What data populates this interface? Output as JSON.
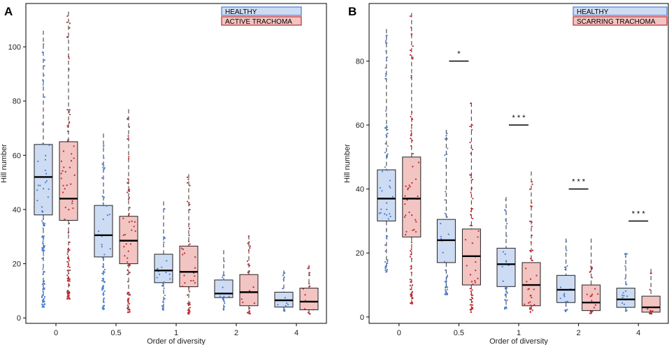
{
  "chart_data": [
    {
      "type": "box",
      "panel_label": "A",
      "xlabel": "Order of diversity",
      "ylabel": "Hill number",
      "categories": [
        "0",
        "0.5",
        "1",
        "2",
        "4"
      ],
      "yticks": [
        "0",
        "20",
        "40",
        "60",
        "80",
        "100"
      ],
      "ylim": [
        -2,
        116
      ],
      "legend": {
        "position": "top-right",
        "entries": [
          "HEALTHY",
          "ACTIVE TRACHOMA"
        ]
      },
      "colors": {
        "healthy": "#4a7fd4",
        "disease": "#c0282e",
        "healthy_fill": "#cddcf3",
        "disease_fill": "#f2c4c2"
      },
      "significance": [
        "",
        "",
        "",
        "",
        ""
      ],
      "series": [
        {
          "name": "HEALTHY",
          "boxes": [
            {
              "min": 4,
              "q1": 38,
              "median": 52,
              "q3": 64,
              "max": 106
            },
            {
              "min": 3,
              "q1": 22.5,
              "median": 30.5,
              "q3": 41.5,
              "max": 68
            },
            {
              "min": 3,
              "q1": 13,
              "median": 17.5,
              "q3": 23.5,
              "max": 43
            },
            {
              "min": 3,
              "q1": 7.5,
              "median": 9,
              "q3": 14,
              "max": 25
            },
            {
              "min": 2.5,
              "q1": 4,
              "median": 6.5,
              "q3": 9.5,
              "max": 17.5
            }
          ]
        },
        {
          "name": "ACTIVE TRACHOMA",
          "boxes": [
            {
              "min": 7,
              "q1": 36,
              "median": 44,
              "q3": 65,
              "max": 113
            },
            {
              "min": 2,
              "q1": 20,
              "median": 28.5,
              "q3": 37.5,
              "max": 77
            },
            {
              "min": 1.5,
              "q1": 11.5,
              "median": 17,
              "q3": 26.5,
              "max": 53
            },
            {
              "min": 1.5,
              "q1": 4.5,
              "median": 9.5,
              "q3": 16,
              "max": 30.5
            },
            {
              "min": 1.5,
              "q1": 3,
              "median": 6,
              "q3": 11,
              "max": 19.5
            }
          ]
        }
      ]
    },
    {
      "type": "box",
      "panel_label": "B",
      "xlabel": "Order of diversity",
      "ylabel": "Hill number",
      "categories": [
        "0",
        "0.5",
        "1",
        "2",
        "4"
      ],
      "yticks": [
        "0",
        "20",
        "40",
        "60",
        "80"
      ],
      "ylim": [
        -2,
        98
      ],
      "legend": {
        "position": "top-right",
        "entries": [
          "HEALTHY",
          "SCARRING TRACHOMA"
        ]
      },
      "colors": {
        "healthy": "#4a7fd4",
        "disease": "#c0282e",
        "healthy_fill": "#cddcf3",
        "disease_fill": "#f2c4c2"
      },
      "significance": [
        "",
        "*",
        "* * *",
        "* * *",
        "* * *"
      ],
      "significance_level": [
        0,
        80,
        60,
        40,
        30
      ],
      "series": [
        {
          "name": "HEALTHY",
          "boxes": [
            {
              "min": 14,
              "q1": 30,
              "median": 37,
              "q3": 46,
              "max": 90
            },
            {
              "min": 7,
              "q1": 17,
              "median": 24,
              "q3": 30.5,
              "max": 58.5
            },
            {
              "min": 2.5,
              "q1": 9.5,
              "median": 16.5,
              "q3": 21.5,
              "max": 37.5
            },
            {
              "min": 1.5,
              "q1": 4.5,
              "median": 8.5,
              "q3": 13,
              "max": 24.5
            },
            {
              "min": 1.5,
              "q1": 3,
              "median": 5.5,
              "q3": 9,
              "max": 20
            }
          ]
        },
        {
          "name": "SCARRING TRACHOMA",
          "boxes": [
            {
              "min": 4,
              "q1": 25,
              "median": 37,
              "q3": 50,
              "max": 95
            },
            {
              "min": 1.5,
              "q1": 10,
              "median": 19,
              "q3": 27.5,
              "max": 67
            },
            {
              "min": 1.5,
              "q1": 3.5,
              "median": 10,
              "q3": 17,
              "max": 45.5
            },
            {
              "min": 1,
              "q1": 2,
              "median": 4.5,
              "q3": 10,
              "max": 24.5
            },
            {
              "min": 1,
              "q1": 1.5,
              "median": 3,
              "q3": 6.5,
              "max": 15
            }
          ]
        }
      ]
    }
  ]
}
